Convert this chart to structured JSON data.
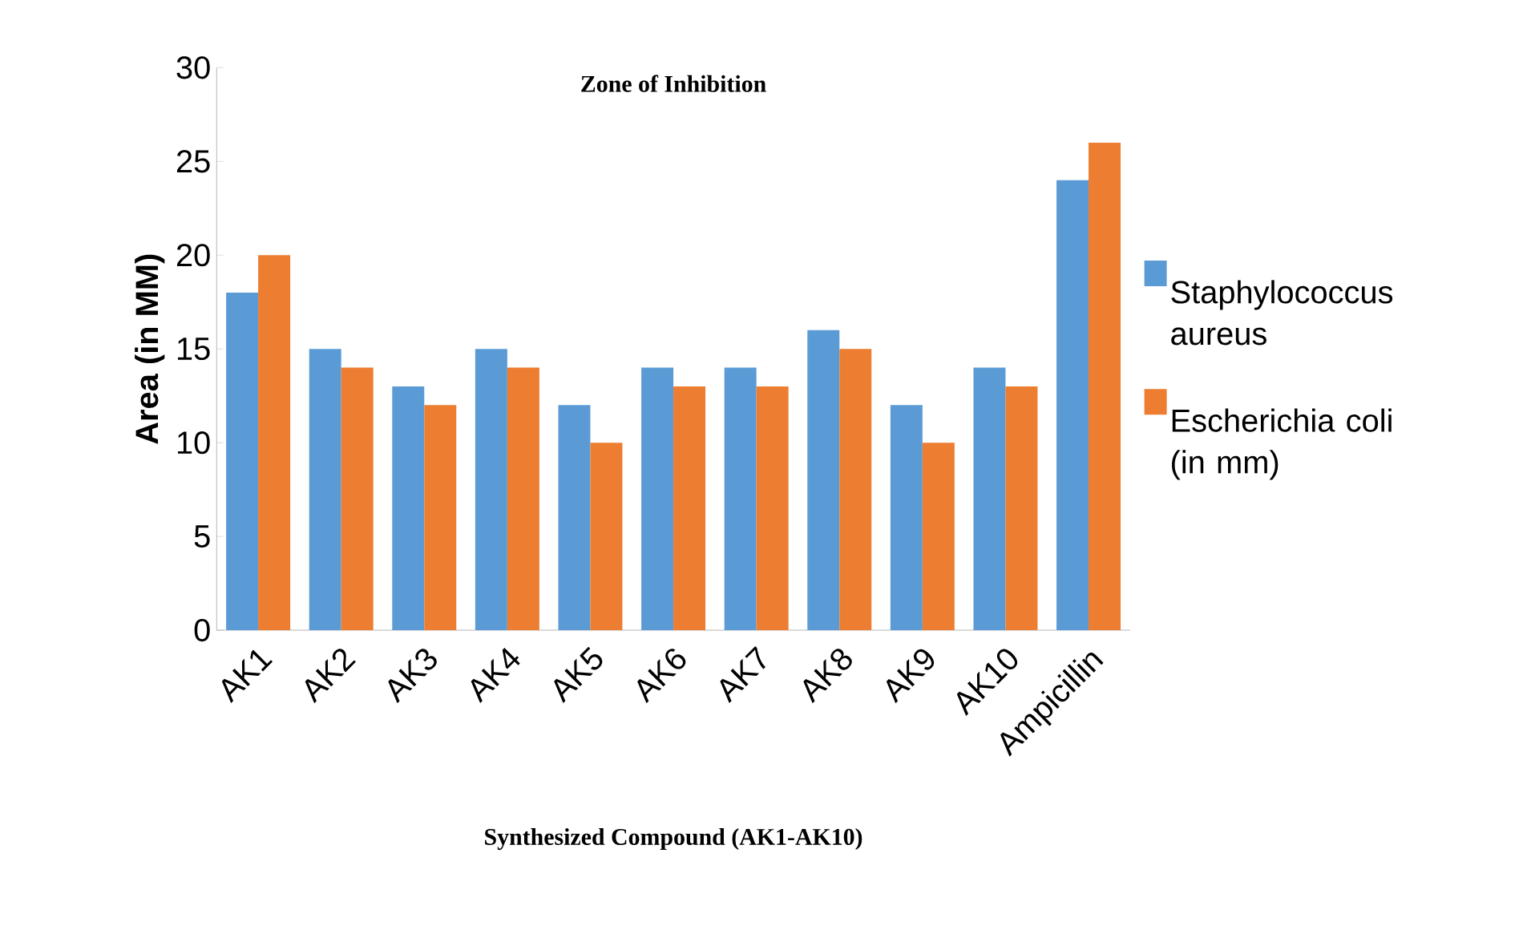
{
  "chart_data": {
    "type": "bar",
    "title": "Zone of Inhibition",
    "xlabel": "Synthesized Compound (AK1-AK10)",
    "ylabel": "Area (in MM)",
    "categories": [
      "AK1",
      "AK2",
      "AK3",
      "AK4",
      "AK5",
      "AK6",
      "AK7",
      "AK8",
      "AK9",
      "AK10",
      "Ampicillin"
    ],
    "series": [
      {
        "name": "Staphylococcus aureus",
        "color": "#5b9bd5",
        "values": [
          18,
          15,
          13,
          15,
          12,
          14,
          14,
          16,
          12,
          14,
          24
        ]
      },
      {
        "name": "Escherichia coli (in mm)",
        "color": "#ed7d31",
        "values": [
          20,
          14,
          12,
          14,
          10,
          13,
          13,
          15,
          10,
          13,
          26
        ]
      }
    ],
    "ylim": [
      0,
      30
    ],
    "yticks": [
      0,
      5,
      10,
      15,
      20,
      25,
      30
    ],
    "grid": false,
    "legend": "right"
  }
}
